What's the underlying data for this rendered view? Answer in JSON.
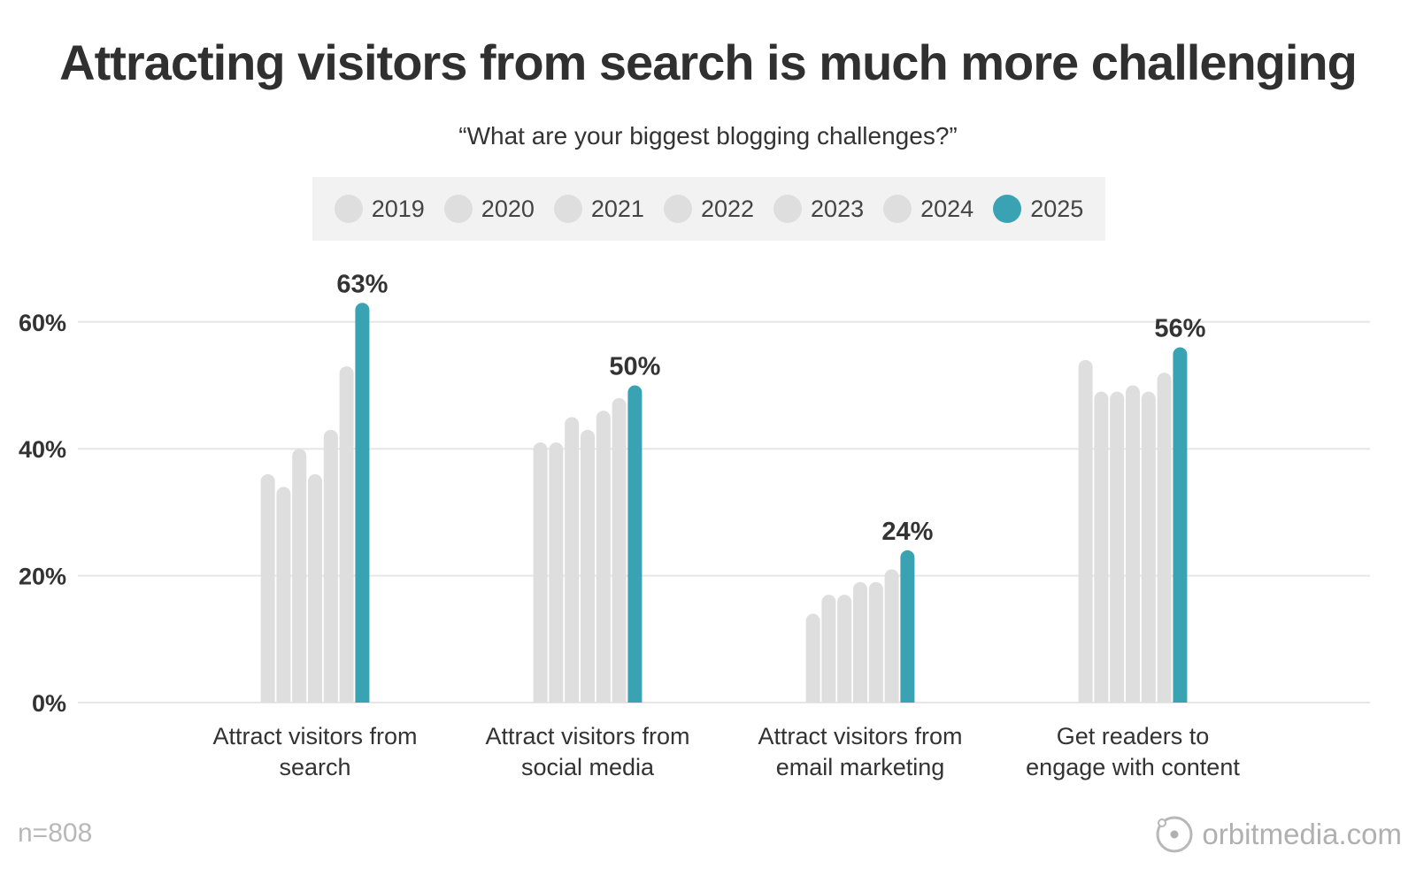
{
  "header": {
    "title": "Attracting visitors from search is much more challenging",
    "subtitle": "“What are your biggest blogging challenges?”"
  },
  "legend": {
    "items": [
      {
        "label": "2019",
        "color": "#dedede"
      },
      {
        "label": "2020",
        "color": "#dedede"
      },
      {
        "label": "2021",
        "color": "#dedede"
      },
      {
        "label": "2022",
        "color": "#dedede"
      },
      {
        "label": "2023",
        "color": "#dedede"
      },
      {
        "label": "2024",
        "color": "#dedede"
      },
      {
        "label": "2025",
        "color": "#3aa3b3"
      }
    ]
  },
  "footer": {
    "sample_size": "n=808",
    "brand": "orbitmedia.com"
  },
  "chart_data": {
    "type": "bar",
    "categories": [
      [
        "Attract visitors from",
        "search"
      ],
      [
        "Attract visitors from",
        "social media"
      ],
      [
        "Attract visitors from",
        "email marketing"
      ],
      [
        "Get readers to",
        "engage with content"
      ]
    ],
    "series": [
      {
        "name": "2019",
        "values": [
          36,
          41,
          14,
          54
        ]
      },
      {
        "name": "2020",
        "values": [
          34,
          41,
          17,
          49
        ]
      },
      {
        "name": "2021",
        "values": [
          40,
          45,
          17,
          49
        ]
      },
      {
        "name": "2022",
        "values": [
          36,
          43,
          19,
          50
        ]
      },
      {
        "name": "2023",
        "values": [
          43,
          46,
          19,
          49
        ]
      },
      {
        "name": "2024",
        "values": [
          53,
          48,
          21,
          52
        ]
      },
      {
        "name": "2025",
        "values": [
          63,
          50,
          24,
          56
        ]
      }
    ],
    "data_labels": [
      "63%",
      "50%",
      "24%",
      "56%"
    ],
    "y_ticks": [
      0,
      20,
      40,
      60
    ],
    "y_tick_labels": [
      "0%",
      "20%",
      "40%",
      "60%"
    ],
    "ylim": [
      0,
      70
    ],
    "grid": true,
    "colors": {
      "past_years": "#dedede",
      "highlight": "#3aa3b3",
      "grid": "#e6e6e6"
    }
  }
}
